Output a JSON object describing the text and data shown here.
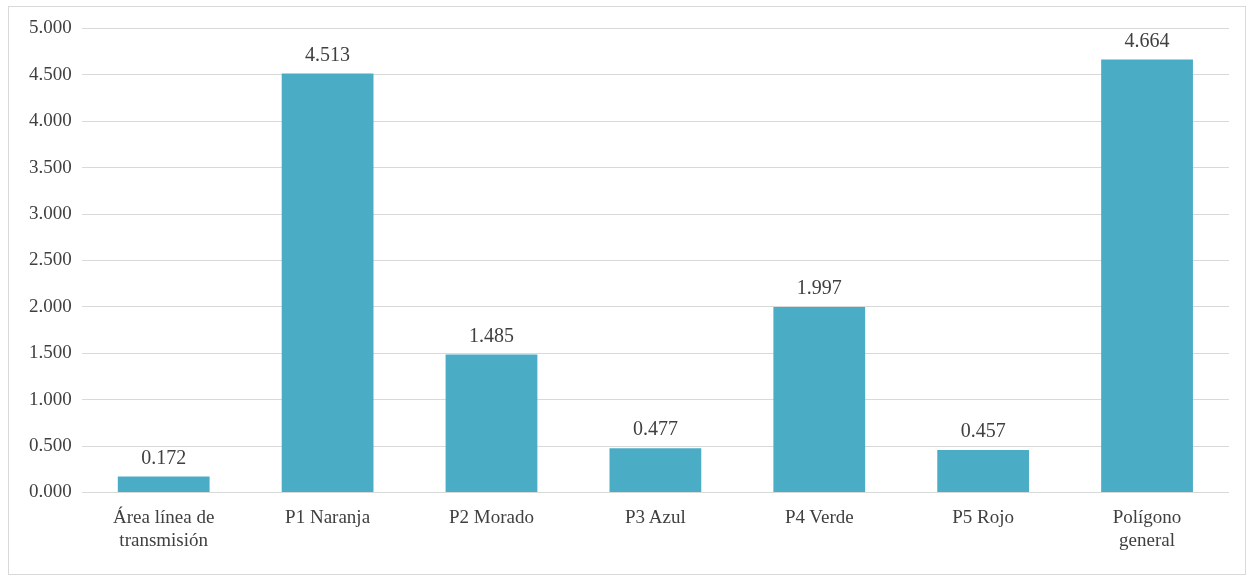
{
  "chart_data": {
    "type": "bar",
    "categories": [
      "Área línea de transmisión",
      "P1 Naranja",
      "P2 Morado",
      "P3 Azul",
      "P4 Verde",
      "P5 Rojo",
      "Polígono general"
    ],
    "values": [
      0.172,
      4.513,
      1.485,
      0.477,
      1.997,
      0.457,
      4.664
    ],
    "color": "#4bacc6",
    "ylim": [
      0,
      5
    ],
    "yticks": [
      {
        "value": 0,
        "label": "0.000"
      },
      {
        "value": 0.5,
        "label": "0.500"
      },
      {
        "value": 1,
        "label": "1.000"
      },
      {
        "value": 1.5,
        "label": "1.500"
      },
      {
        "value": 2,
        "label": "2.000"
      },
      {
        "value": 2.5,
        "label": "2.500"
      },
      {
        "value": 3,
        "label": "3.000"
      },
      {
        "value": 3.5,
        "label": "3.500"
      },
      {
        "value": 4,
        "label": "4.000"
      },
      {
        "value": 4.5,
        "label": "4.500"
      },
      {
        "value": 5,
        "label": "5.000"
      }
    ],
    "grid": "y",
    "data_labels": true
  }
}
